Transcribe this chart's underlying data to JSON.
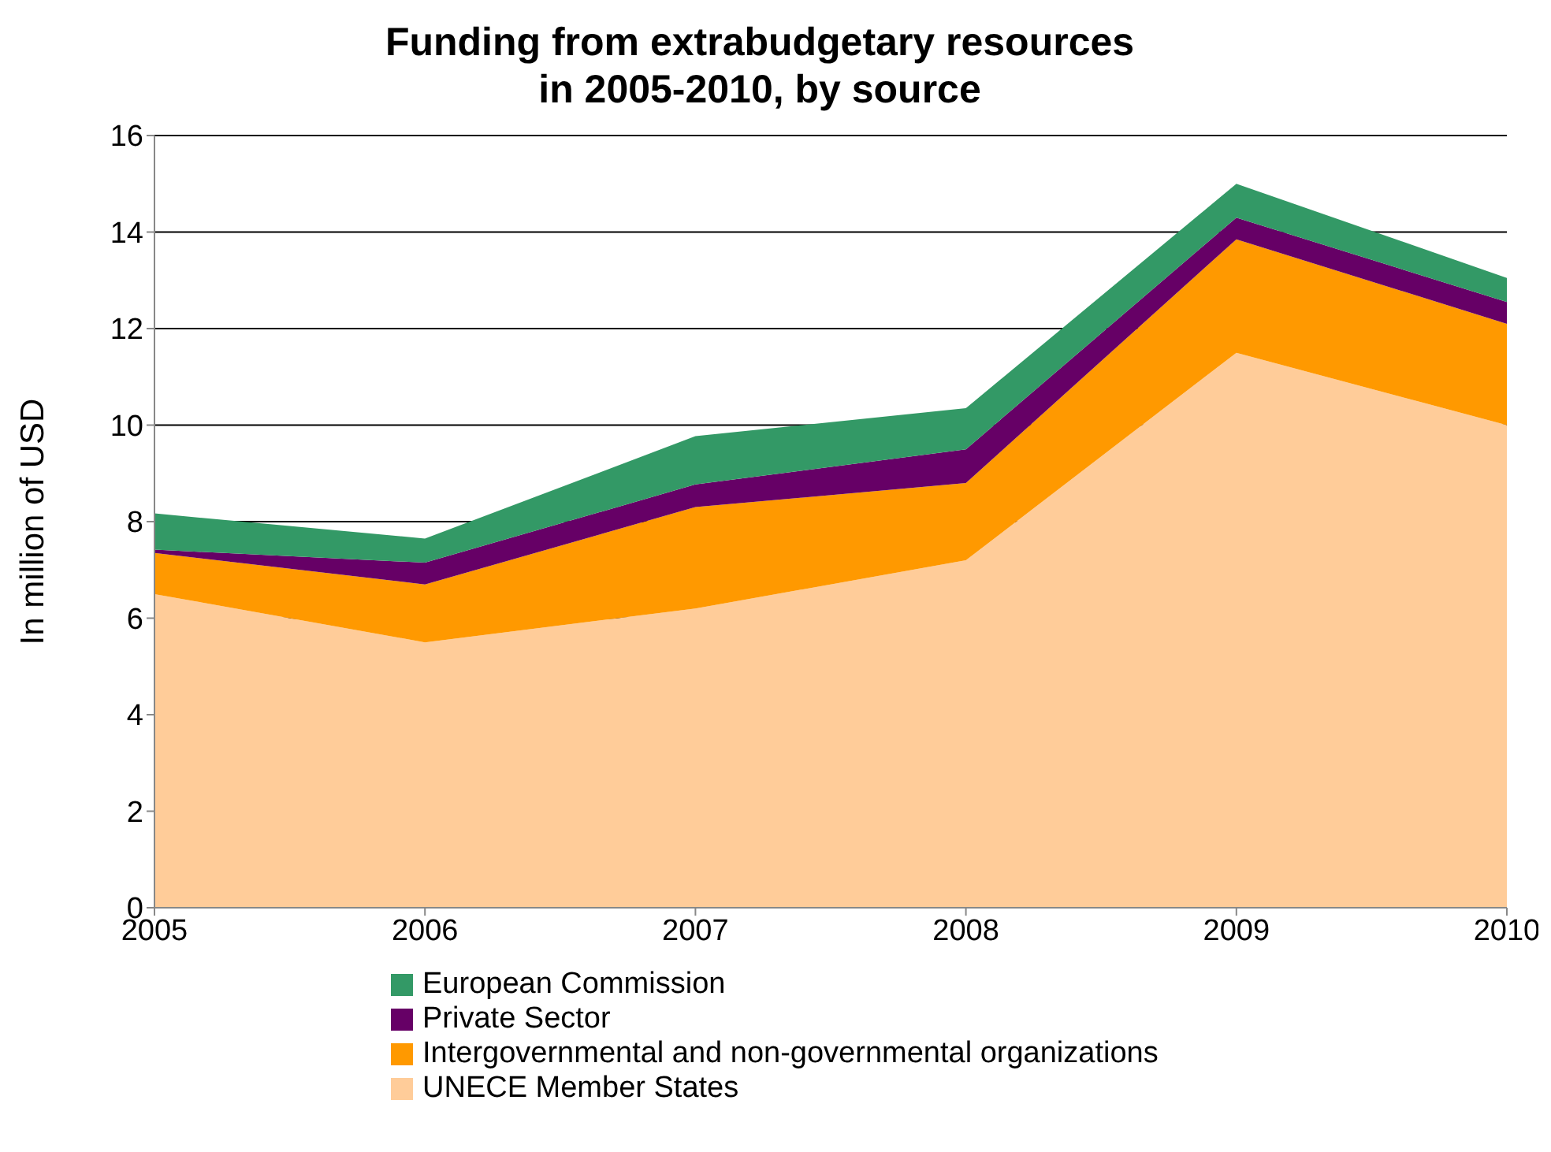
{
  "chart_data": {
    "type": "area",
    "title": "Funding from extrabudgetary resources\nin 2005-2010, by source",
    "ylabel": "In million of USD",
    "categories": [
      "2005",
      "2006",
      "2007",
      "2008",
      "2009",
      "2010"
    ],
    "stacked": true,
    "ylim": [
      0,
      16
    ],
    "yticks": [
      0,
      2,
      4,
      6,
      8,
      10,
      12,
      14,
      16
    ],
    "grid": "y",
    "legend": "bottom",
    "series": [
      {
        "name": "UNECE Member States",
        "color": "#ffcc99",
        "values": [
          6.5,
          5.5,
          6.2,
          7.2,
          11.5,
          10.0
        ]
      },
      {
        "name": "Intergovernmental and non-governmental organizations",
        "color": "#ff9900",
        "values": [
          0.85,
          1.2,
          2.1,
          1.6,
          2.35,
          2.1
        ]
      },
      {
        "name": "Private Sector",
        "color": "#660066",
        "values": [
          0.07,
          0.45,
          0.47,
          0.7,
          0.45,
          0.45
        ]
      },
      {
        "name": "European Commission",
        "color": "#339966",
        "values": [
          0.75,
          0.5,
          1.0,
          0.85,
          0.7,
          0.5
        ]
      }
    ]
  }
}
